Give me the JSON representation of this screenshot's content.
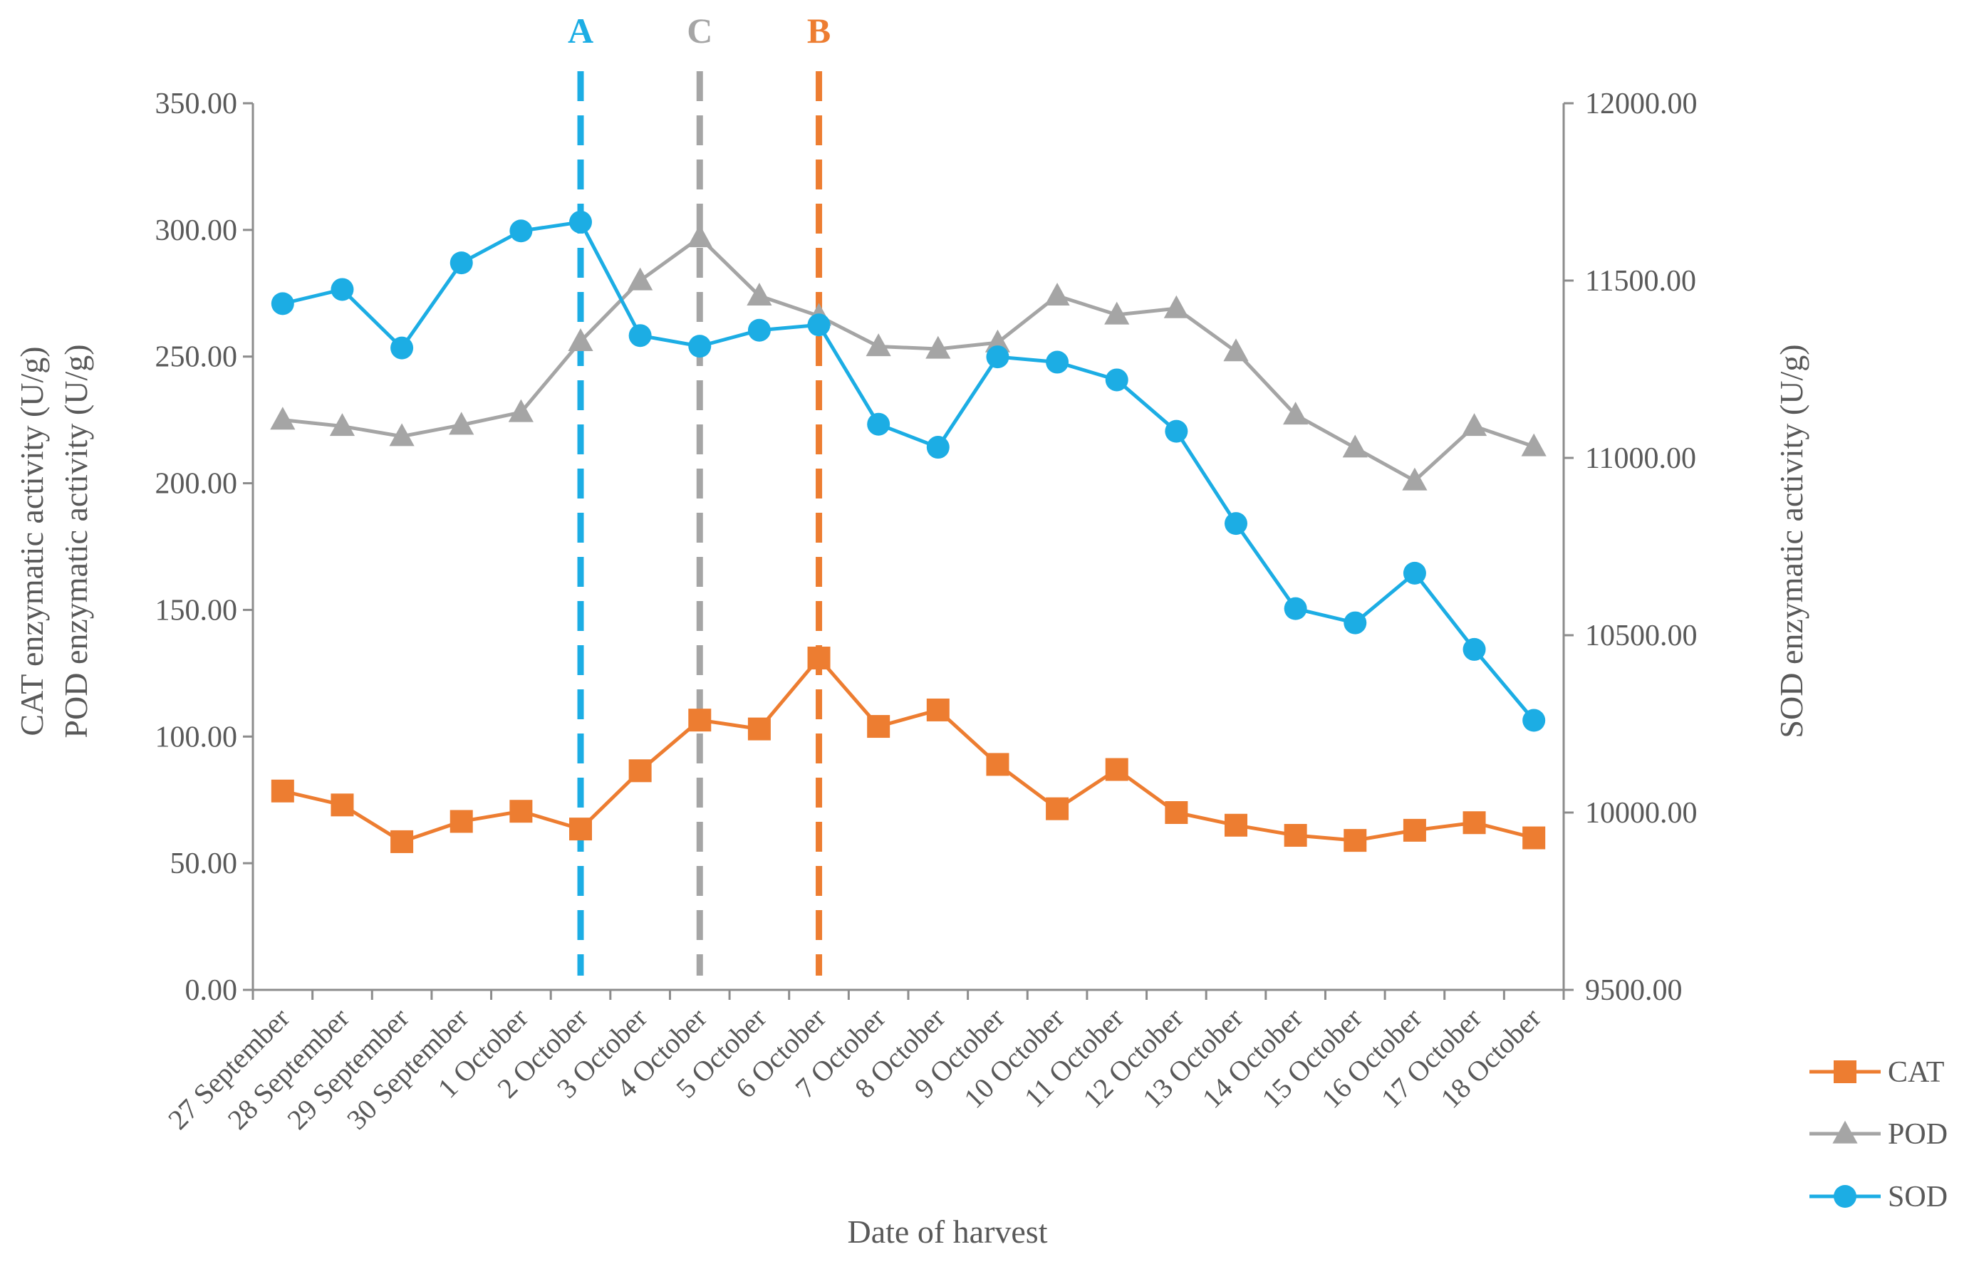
{
  "chart_data": {
    "type": "line",
    "x_title": "Date of harvest",
    "y_left_title": [
      "CAT enzymatic activity (U/g)",
      "POD enzymatic activity (U/g)"
    ],
    "y_right_title": "SOD enzymatic activity (U/g)",
    "y_left_range": [
      0,
      350
    ],
    "y_left_ticks": [
      "0.00",
      "50.00",
      "100.00",
      "150.00",
      "200.00",
      "250.00",
      "300.00",
      "350.00"
    ],
    "y_right_range": [
      9500,
      12000
    ],
    "y_right_ticks": [
      "9500.00",
      "10000.00",
      "10500.00",
      "11000.00",
      "11500.00",
      "12000.00"
    ],
    "categories": [
      "27 September",
      "28 September",
      "29 September",
      "30 September",
      "1 October",
      "2 October",
      "3 October",
      "4 October",
      "5 October",
      "6 October",
      "7 October",
      "8 October",
      "9 October",
      "10 October",
      "11 October",
      "12 October",
      "13 October",
      "14 October",
      "15 October",
      "16 October",
      "17 October",
      "18 October"
    ],
    "series": [
      {
        "name": "CAT",
        "axis": "left",
        "marker": "square",
        "color": "#ED7D31",
        "values": [
          78.5,
          73,
          58.5,
          66.5,
          70.5,
          63.5,
          86.5,
          106.5,
          103,
          131,
          104,
          110.5,
          89,
          71.5,
          87,
          70,
          65,
          61,
          59,
          63,
          66,
          60
        ]
      },
      {
        "name": "POD",
        "axis": "left",
        "marker": "triangle",
        "color": "#A5A5A5",
        "values": [
          225,
          222.5,
          218.5,
          223,
          228,
          256,
          280,
          297,
          274,
          266,
          254,
          253,
          255.5,
          274,
          266.5,
          269,
          252,
          227,
          214,
          201,
          222.5,
          214.5
        ]
      },
      {
        "name": "SOD",
        "axis": "right",
        "marker": "circle",
        "color": "#1CADE4",
        "values": [
          11435,
          11475,
          11310,
          11550,
          11640,
          11665,
          11345,
          11315,
          11360,
          11375,
          11095,
          11030,
          11285,
          11270,
          11220,
          11075,
          10815,
          10575,
          10535,
          10675,
          10460,
          10260
        ]
      }
    ],
    "reference_lines": [
      {
        "label": "A",
        "at_category": "2 October",
        "color": "#1CADE4"
      },
      {
        "label": "C",
        "at_category": "4 October",
        "color": "#A5A5A5"
      },
      {
        "label": "B",
        "at_category": "6 October",
        "color": "#ED7D31"
      }
    ],
    "legend": [
      "CAT",
      "POD",
      "SOD"
    ],
    "legend_position": "bottom-right",
    "grid": false
  }
}
